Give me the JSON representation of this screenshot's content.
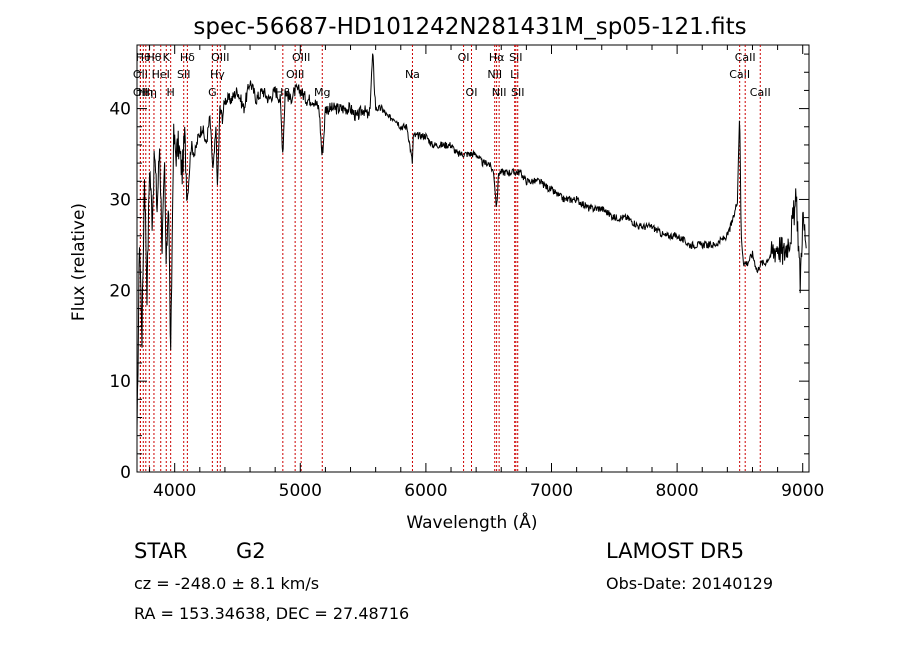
{
  "chart_data": {
    "type": "line",
    "title": "spec-56687-HD101242N281431M_sp05-121.fits",
    "xlabel": "Wavelength (Å)",
    "ylabel": "Flux (relative)",
    "xlim": [
      3700,
      9050
    ],
    "ylim": [
      0,
      47
    ],
    "x_ticks": [
      "4000",
      "5000",
      "6000",
      "7000",
      "8000",
      "9000"
    ],
    "y_ticks": [
      "0",
      "10",
      "20",
      "30",
      "40"
    ],
    "x_tick_values": [
      4000,
      5000,
      6000,
      7000,
      8000,
      9000
    ],
    "y_tick_values": [
      0,
      10,
      20,
      30,
      40
    ],
    "grid": false,
    "line_color": "#000000",
    "marker_color": "#cc0000",
    "series": [
      {
        "x": [
          3700,
          3720,
          3740,
          3760,
          3780,
          3800,
          3820,
          3840,
          3860,
          3880,
          3900,
          3920,
          3933,
          3950,
          3968,
          3990,
          4010,
          4030,
          4060,
          4080,
          4101,
          4130,
          4160,
          4190,
          4220,
          4250,
          4280,
          4305,
          4330,
          4340,
          4360,
          4380,
          4400,
          4450,
          4500,
          4550,
          4600,
          4650,
          4700,
          4750,
          4800,
          4840,
          4861,
          4880,
          4920,
          4960,
          5000,
          5050,
          5100,
          5150,
          5172,
          5183,
          5200,
          5250,
          5300,
          5350,
          5400,
          5450,
          5500,
          5550,
          5577,
          5600,
          5650,
          5700,
          5750,
          5800,
          5850,
          5893,
          5900,
          5950,
          6000,
          6050,
          6100,
          6150,
          6200,
          6250,
          6300,
          6350,
          6400,
          6450,
          6500,
          6540,
          6563,
          6580,
          6600,
          6650,
          6700,
          6750,
          6800,
          6850,
          6900,
          7000,
          7100,
          7200,
          7300,
          7400,
          7500,
          7600,
          7700,
          7800,
          7900,
          8000,
          8100,
          8200,
          8300,
          8400,
          8450,
          8480,
          8498,
          8510,
          8530,
          8542,
          8560,
          8600,
          8640,
          8662,
          8700,
          8750,
          8800,
          8850,
          8900,
          8950,
          8980,
          9000,
          9030
        ],
        "values": [
          3,
          26,
          15,
          33,
          20,
          34,
          28,
          35,
          29,
          36,
          25,
          33,
          22,
          31,
          12,
          37,
          35,
          36,
          33,
          37,
          30,
          36,
          35,
          37,
          38,
          36,
          39,
          33,
          38,
          31,
          40,
          39,
          41,
          41,
          42,
          40,
          43,
          41,
          42,
          41,
          42,
          41,
          35,
          42,
          41,
          42,
          42,
          41,
          41,
          40,
          35,
          36,
          40,
          40,
          40,
          40,
          40,
          39,
          40,
          39,
          46,
          40,
          40,
          39,
          39,
          38,
          38,
          34,
          37,
          37,
          37,
          36,
          36,
          36,
          36,
          35,
          35,
          35,
          35,
          34,
          34,
          33,
          29,
          33,
          33,
          33,
          33,
          33,
          32,
          32,
          32,
          31,
          30,
          30,
          29,
          29,
          28,
          28,
          27,
          27,
          26,
          26,
          25,
          25,
          25,
          26,
          28,
          30,
          40,
          26,
          23,
          23,
          23,
          24,
          22,
          23,
          23,
          24,
          25,
          24,
          26,
          30,
          21,
          28,
          25
        ]
      }
    ],
    "line_markers": [
      {
        "x": 3750,
        "label": "Hθ",
        "row": 1
      },
      {
        "x": 3727,
        "label": "OII",
        "row": 2
      },
      {
        "x": 3727,
        "label": "OII",
        "row": 3
      },
      {
        "x": 3770,
        "label": "Hη",
        "row": 3
      },
      {
        "x": 3798,
        "label": "Hη",
        "row": 3
      },
      {
        "x": 3835,
        "label": "Hθ",
        "row": 1
      },
      {
        "x": 3889,
        "label": "HeI",
        "row": 2
      },
      {
        "x": 3933,
        "label": "K",
        "row": 1
      },
      {
        "x": 3968,
        "label": "H",
        "row": 3
      },
      {
        "x": 4072,
        "label": "SII",
        "row": 2
      },
      {
        "x": 4101,
        "label": "Hδ",
        "row": 1
      },
      {
        "x": 4300,
        "label": "G",
        "row": 3
      },
      {
        "x": 4340,
        "label": "Hγ",
        "row": 2
      },
      {
        "x": 4363,
        "label": "OIII",
        "row": 1
      },
      {
        "x": 4861,
        "label": "Hβ",
        "row": 3
      },
      {
        "x": 4959,
        "label": "OIII",
        "row": 2
      },
      {
        "x": 5007,
        "label": "OIII",
        "row": 1
      },
      {
        "x": 5175,
        "label": "Mg",
        "row": 3
      },
      {
        "x": 5893,
        "label": "Na",
        "row": 2
      },
      {
        "x": 6300,
        "label": "OI",
        "row": 1
      },
      {
        "x": 6363,
        "label": "OI",
        "row": 3
      },
      {
        "x": 6548,
        "label": "NII",
        "row": 2
      },
      {
        "x": 6563,
        "label": "Hα",
        "row": 1
      },
      {
        "x": 6583,
        "label": "NII",
        "row": 3
      },
      {
        "x": 6707,
        "label": "Li",
        "row": 2
      },
      {
        "x": 6716,
        "label": "SII",
        "row": 1
      },
      {
        "x": 6731,
        "label": "SII",
        "row": 3
      },
      {
        "x": 8498,
        "label": "CaII",
        "row": 2
      },
      {
        "x": 8542,
        "label": "CaII",
        "row": 1
      },
      {
        "x": 8662,
        "label": "CaII",
        "row": 3
      }
    ]
  },
  "info": {
    "class": "STAR",
    "subclass": "G2",
    "survey": "LAMOST  DR5",
    "cz": "cz = -248.0 ± 8.1 km/s",
    "obs_date": "Obs-Date: 20140129",
    "coords": "RA = 153.34638, DEC =  27.48716"
  }
}
